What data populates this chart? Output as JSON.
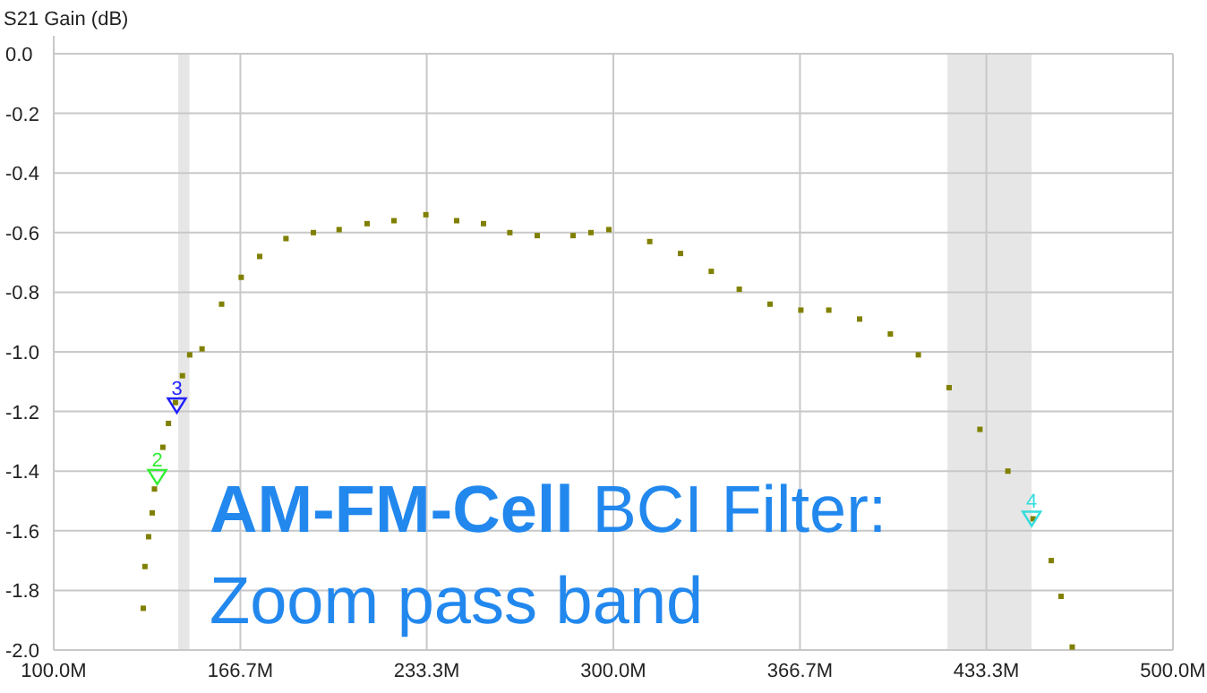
{
  "chart_data": {
    "type": "scatter",
    "ylabel": "S21 Gain (dB)",
    "xlim": [
      100,
      500
    ],
    "xticks": [
      {
        "value": 100,
        "label": "100.0M"
      },
      {
        "value": 166.7,
        "label": "166.7M"
      },
      {
        "value": 233.3,
        "label": "233.3M"
      },
      {
        "value": 300,
        "label": "300.0M"
      },
      {
        "value": 366.7,
        "label": "366.7M"
      },
      {
        "value": 433.3,
        "label": "433.3M"
      },
      {
        "value": 500,
        "label": "500.0M"
      }
    ],
    "ylim": [
      -2,
      0
    ],
    "yticks": [
      {
        "value": -2,
        "label": "-2.0"
      },
      {
        "value": -1.8,
        "label": "-1.8"
      },
      {
        "value": -1.6,
        "label": "-1.6"
      },
      {
        "value": -1.4,
        "label": "-1.4"
      },
      {
        "value": -1.2,
        "label": "-1.2"
      },
      {
        "value": -1,
        "label": "-1.0"
      },
      {
        "value": -0.8,
        "label": "-0.8"
      },
      {
        "value": -0.6,
        "label": "-0.6"
      },
      {
        "value": -0.4,
        "label": "-0.4"
      },
      {
        "value": -0.2,
        "label": "-0.2"
      },
      {
        "value": 0,
        "label": "0.0"
      }
    ],
    "grid": true,
    "bands": [
      {
        "axis": "x",
        "from": 144.5,
        "to": 148.5,
        "color": "#e6e6e6"
      },
      {
        "axis": "x",
        "from": 419.4,
        "to": 449.5,
        "color": "#e6e6e6"
      }
    ],
    "series": [
      {
        "marker": "square",
        "color": "#808000",
        "x": [
          132,
          132.6,
          133.9,
          135.2,
          136,
          139,
          141,
          143.5,
          146,
          148.6,
          153,
          160,
          167,
          173.6,
          183,
          192.8,
          202,
          212,
          221.6,
          233,
          244,
          253.6,
          263,
          272.8,
          285.6,
          292,
          298.4,
          313,
          324,
          335,
          345,
          356,
          367,
          377,
          388,
          399,
          409,
          420,
          431,
          441,
          450,
          456.5,
          460,
          464
        ],
        "values": [
          -1.86,
          -1.72,
          -1.62,
          -1.54,
          -1.46,
          -1.32,
          -1.24,
          -1.17,
          -1.08,
          -1.01,
          -0.99,
          -0.84,
          -0.75,
          -0.68,
          -0.62,
          -0.6,
          -0.59,
          -0.57,
          -0.56,
          -0.54,
          -0.56,
          -0.57,
          -0.6,
          -0.61,
          -0.61,
          -0.6,
          -0.59,
          -0.63,
          -0.67,
          -0.73,
          -0.79,
          -0.84,
          -0.86,
          -0.86,
          -0.89,
          -0.94,
          -1.01,
          -1.12,
          -1.26,
          -1.4,
          -1.56,
          -1.7,
          -1.82,
          -1.99
        ]
      },
      {
        "marker": "triangle",
        "x": [
          137,
          144,
          449.5
        ],
        "values": [
          -1.42,
          -1.18,
          -1.56
        ],
        "colors": [
          "#33ee33",
          "#2020ff",
          "#33dddd"
        ]
      }
    ],
    "annotations": [
      "AM-FM-Cell BCI Filter:",
      "Zoom pass band",
      {
        "text": "2",
        "x": 137,
        "y": -1.42
      },
      {
        "text": "3",
        "x": 144,
        "y": -1.18
      },
      {
        "text": "4",
        "x": 449.5,
        "y": -1.56
      }
    ]
  }
}
